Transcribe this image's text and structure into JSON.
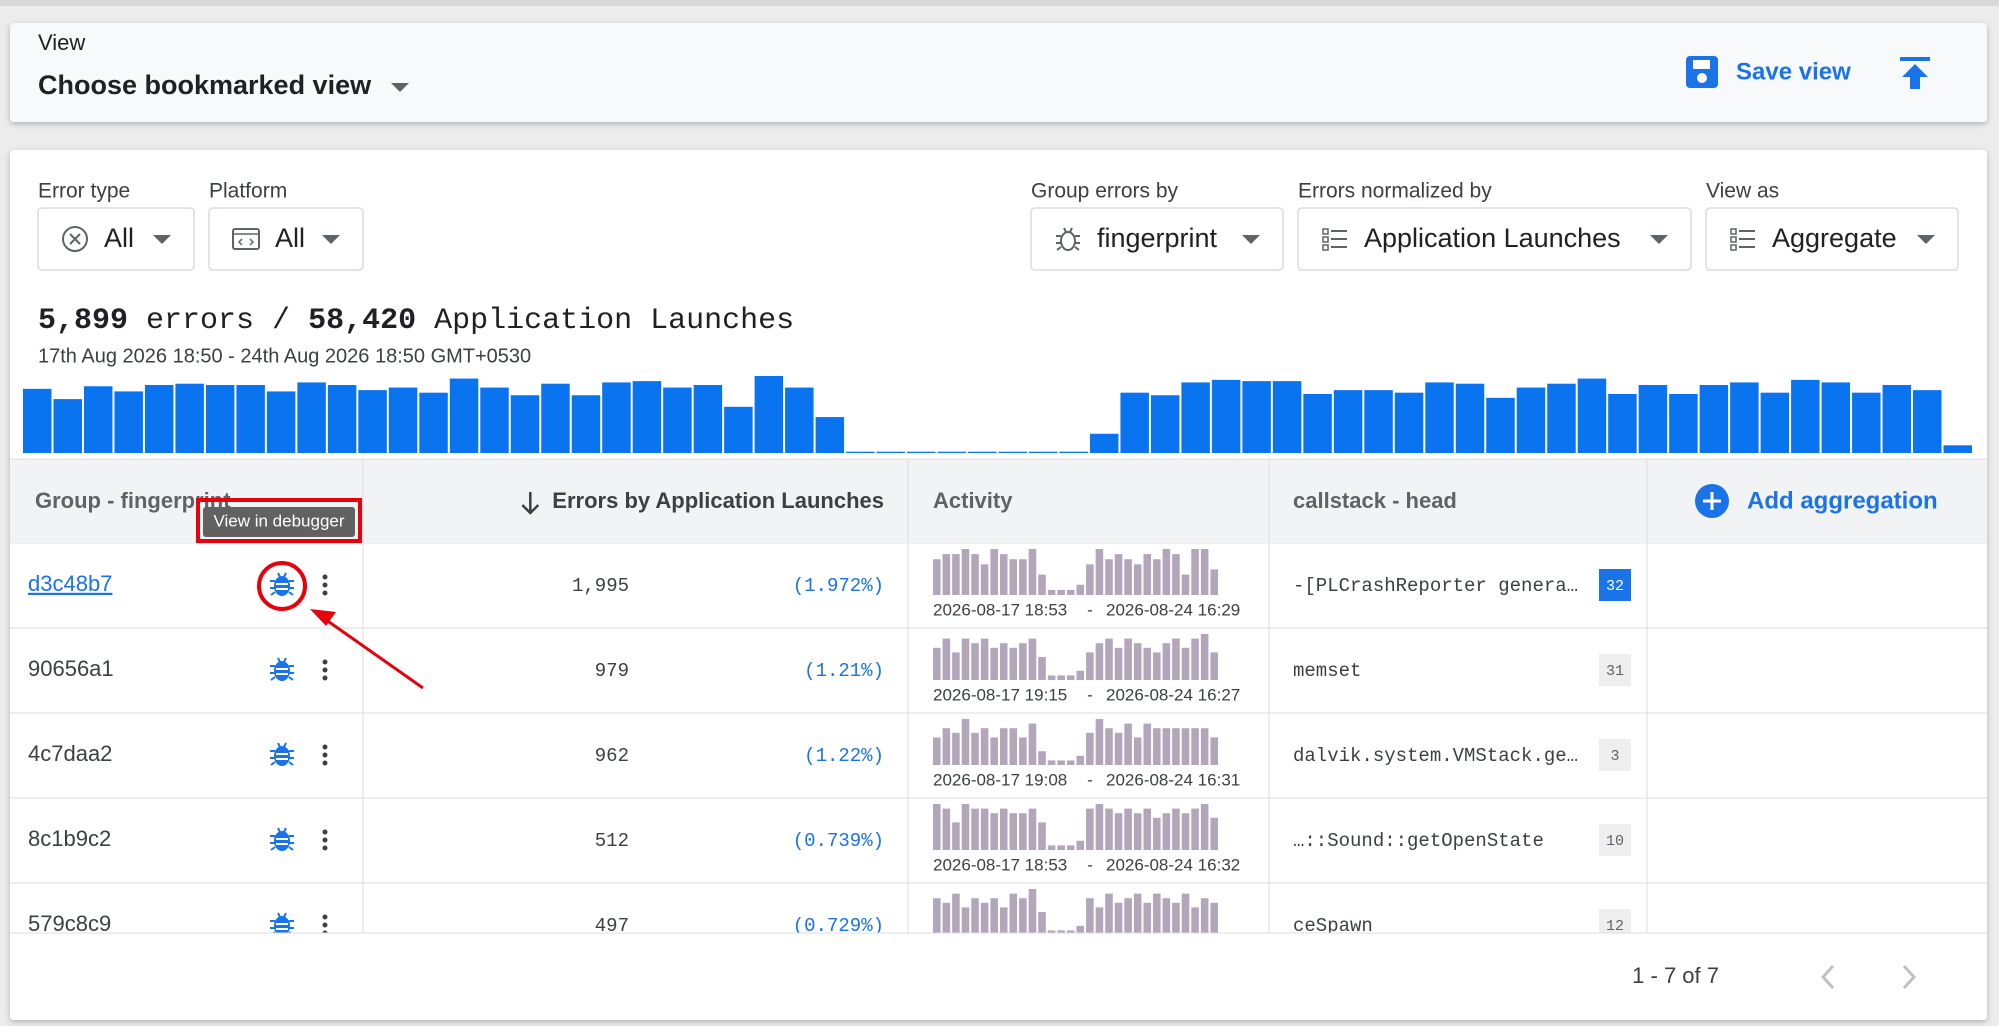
{
  "header": {
    "label": "View",
    "selected": "Choose bookmarked view",
    "save": "Save view"
  },
  "filters": [
    {
      "label": "Error type",
      "value": "All"
    },
    {
      "label": "Platform",
      "value": "All"
    },
    {
      "label": "Group errors by",
      "value": "fingerprint"
    },
    {
      "label": "Errors normalized by",
      "value": "Application Launches"
    },
    {
      "label": "View as",
      "value": "Aggregate"
    }
  ],
  "summary": {
    "errors": "5,899",
    "errors_label": "errors",
    "separator": "/",
    "launches": "58,420",
    "launches_label": "Application Launches",
    "range": "17th Aug 2026 18:50 - 24th Aug 2026 18:50 GMT+0530"
  },
  "histogram": [
    50,
    42,
    52,
    48,
    53,
    54,
    53,
    53,
    48,
    55,
    53,
    49,
    51,
    47,
    58,
    51,
    45,
    54,
    45,
    55,
    56,
    51,
    53,
    36,
    60,
    51,
    28,
    1,
    1,
    1,
    1,
    1,
    1,
    1,
    1,
    15,
    47,
    45,
    55,
    57,
    56,
    56,
    46,
    49,
    49,
    47,
    55,
    54,
    43,
    51,
    54,
    58,
    46,
    53,
    46,
    53,
    55,
    47,
    57,
    55,
    47,
    53,
    49,
    6
  ],
  "table": {
    "columns": [
      "Group - fingerprint",
      "Errors by Application Launches",
      "Activity",
      "callstack - head"
    ],
    "add_column": "Add aggregation",
    "tooltip": "View in debugger",
    "activity_separator": "-",
    "rows": [
      {
        "group": "d3c48b7",
        "count": "1,995",
        "share": "(1.972%)",
        "activity": [
          7,
          8,
          8,
          9,
          8,
          6,
          9,
          8,
          7,
          7,
          9,
          4,
          1,
          1,
          1,
          2,
          6,
          9,
          7,
          8,
          7,
          6,
          8,
          7,
          9,
          8,
          4,
          9,
          9,
          5
        ],
        "first_seen": "2026-08-17 18:53",
        "last_seen": "2026-08-24 16:29",
        "callstack": "-[PLCrashReporter genera…",
        "badge": "32"
      },
      {
        "group": "90656a1",
        "count": "979",
        "share": "(1.21%)",
        "activity": [
          7,
          9,
          6,
          9,
          8,
          9,
          7,
          8,
          7,
          8,
          9,
          5,
          1,
          1,
          1,
          2,
          6,
          8,
          9,
          7,
          9,
          8,
          7,
          6,
          8,
          9,
          7,
          9,
          10,
          6
        ],
        "first_seen": "2026-08-17 19:15",
        "last_seen": "2026-08-24 16:27",
        "callstack": "memset",
        "badge": "31"
      },
      {
        "group": "4c7daa2",
        "count": "962",
        "share": "(1.22%)",
        "activity": [
          6,
          8,
          7,
          10,
          7,
          8,
          6,
          8,
          8,
          6,
          9,
          3,
          1,
          1,
          1,
          2,
          7,
          10,
          8,
          7,
          9,
          6,
          9,
          8,
          8,
          8,
          8,
          8,
          8,
          6
        ],
        "first_seen": "2026-08-17 19:08",
        "last_seen": "2026-08-24 16:31",
        "callstack": "dalvik.system.VMStack.ge…",
        "badge": "3"
      },
      {
        "group": "8c1b9c2",
        "count": "512",
        "share": "(0.739%)",
        "activity": [
          10,
          9,
          6,
          10,
          9,
          9,
          8,
          9,
          8,
          8,
          9,
          6,
          1,
          1,
          1,
          2,
          9,
          10,
          9,
          8,
          9,
          8,
          9,
          7,
          8,
          9,
          8,
          9,
          10,
          7
        ],
        "first_seen": "2026-08-17 18:53",
        "last_seen": "2026-08-24 16:32",
        "callstack": "…::Sound::getOpenState",
        "badge": "10"
      },
      {
        "group": "579c8c9",
        "count": "497",
        "share": "(0.729%)",
        "activity": [
          8,
          7,
          9,
          6,
          8,
          7,
          8,
          6,
          9,
          8,
          10,
          5,
          1,
          1,
          1,
          2,
          8,
          6,
          9,
          7,
          8,
          9,
          7,
          9,
          8,
          7,
          9,
          6,
          8,
          7
        ],
        "callstack": "ceSpawn",
        "badge": "12"
      }
    ]
  },
  "pagination": "1 - 7 of 7"
}
